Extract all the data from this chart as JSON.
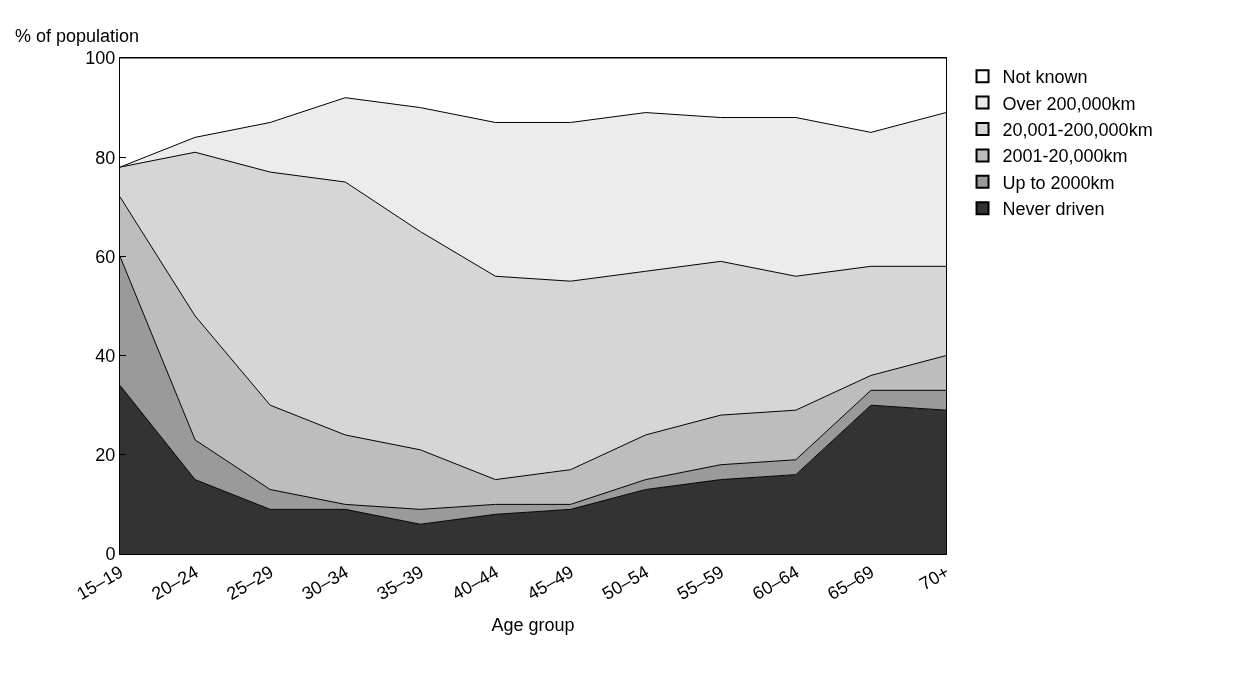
{
  "chart_data": {
    "type": "area",
    "stacked": true,
    "xlabel": "Age group",
    "ylabel": "% of population",
    "categories": [
      "15–19",
      "20–24",
      "25–29",
      "30–34",
      "35–39",
      "40–44",
      "45–49",
      "50–54",
      "55–59",
      "60–64",
      "65–69",
      "70+"
    ],
    "series": [
      {
        "name": "Never driven",
        "color": "#333333",
        "values": [
          34,
          15,
          9,
          9,
          6,
          8,
          9,
          13,
          15,
          16,
          30,
          29
        ]
      },
      {
        "name": "Up to 2000km",
        "color": "#9a9a9a",
        "values": [
          26,
          8,
          4,
          1,
          3,
          2,
          1,
          2,
          3,
          3,
          3,
          4
        ]
      },
      {
        "name": "2001-20,000km",
        "color": "#bdbdbd",
        "values": [
          12,
          25,
          17,
          14,
          12,
          5,
          7,
          9,
          10,
          10,
          3,
          7
        ]
      },
      {
        "name": "20,001-200,000km",
        "color": "#d6d6d6",
        "values": [
          6,
          33,
          47,
          51,
          44,
          41,
          38,
          33,
          31,
          27,
          22,
          18
        ]
      },
      {
        "name": "Over 200,000km",
        "color": "#ececec",
        "values": [
          0,
          3,
          10,
          17,
          25,
          31,
          32,
          32,
          29,
          32,
          27,
          31
        ]
      },
      {
        "name": "Not known",
        "color": "#ffffff",
        "values": [
          22,
          16,
          13,
          8,
          10,
          13,
          13,
          11,
          12,
          12,
          15,
          11
        ]
      }
    ],
    "ylim": [
      0,
      100
    ],
    "yticks": [
      0,
      20,
      40,
      60,
      80,
      100
    ],
    "legend": "right"
  }
}
